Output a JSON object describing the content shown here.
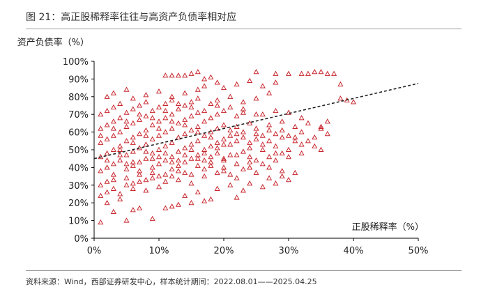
{
  "figure": {
    "title": "图 21：高正股稀释率往往与高资产负债率相对应",
    "source": "资料来源：Wind，西部证券研发中心，样本统计期间：2022.08.01——2025.04.25"
  },
  "chart_data": {
    "type": "scatter",
    "xlabel": "正股稀释率（%）",
    "ylabel": "资产负债率（%）",
    "xlim": [
      0,
      50
    ],
    "ylim": [
      0,
      100
    ],
    "x_ticks": [
      "0%",
      "10%",
      "20%",
      "30%",
      "40%",
      "50%"
    ],
    "y_ticks": [
      "0%",
      "10%",
      "20%",
      "30%",
      "40%",
      "50%",
      "60%",
      "70%",
      "80%",
      "90%",
      "100%"
    ],
    "grid": false,
    "marker": "hollow-triangle",
    "marker_color": "#c8262d",
    "trendline": {
      "style": "dashed",
      "color": "#222222",
      "x": [
        0,
        50
      ],
      "y": [
        45,
        87.5
      ]
    },
    "points": [
      [
        1,
        9
      ],
      [
        5,
        10
      ],
      [
        9,
        11
      ],
      [
        3,
        15
      ],
      [
        6,
        16
      ],
      [
        7,
        17
      ],
      [
        11,
        17
      ],
      [
        12,
        18
      ],
      [
        13,
        19
      ],
      [
        15,
        20
      ],
      [
        17,
        21
      ],
      [
        18,
        22
      ],
      [
        22,
        23
      ],
      [
        1,
        24
      ],
      [
        2,
        26
      ],
      [
        4,
        25
      ],
      [
        8,
        27
      ],
      [
        10,
        29
      ],
      [
        14,
        24
      ],
      [
        16,
        26
      ],
      [
        19,
        28
      ],
      [
        21,
        30
      ],
      [
        23,
        27
      ],
      [
        26,
        29
      ],
      [
        28,
        31
      ],
      [
        30,
        33
      ],
      [
        24,
        31
      ],
      [
        27,
        34
      ],
      [
        29,
        35
      ],
      [
        31,
        37
      ],
      [
        1,
        30
      ],
      [
        2,
        32
      ],
      [
        3,
        33
      ],
      [
        5,
        34
      ],
      [
        6,
        31
      ],
      [
        7,
        36
      ],
      [
        9,
        37
      ],
      [
        11,
        32
      ],
      [
        12,
        35
      ],
      [
        13,
        38
      ],
      [
        15,
        36
      ],
      [
        17,
        39
      ],
      [
        20,
        40
      ],
      [
        22,
        42
      ],
      [
        25,
        44
      ],
      [
        27,
        46
      ],
      [
        29,
        48
      ],
      [
        1,
        38
      ],
      [
        2,
        40
      ],
      [
        3,
        42
      ],
      [
        4,
        44
      ],
      [
        5,
        39
      ],
      [
        6,
        41
      ],
      [
        7,
        43
      ],
      [
        8,
        45
      ],
      [
        9,
        40
      ],
      [
        10,
        42
      ],
      [
        11,
        44
      ],
      [
        12,
        46
      ],
      [
        13,
        41
      ],
      [
        14,
        43
      ],
      [
        15,
        45
      ],
      [
        16,
        47
      ],
      [
        17,
        44
      ],
      [
        18,
        46
      ],
      [
        19,
        48
      ],
      [
        20,
        45
      ],
      [
        21,
        47
      ],
      [
        23,
        49
      ],
      [
        24,
        46
      ],
      [
        26,
        50
      ],
      [
        28,
        52
      ],
      [
        30,
        50
      ],
      [
        32,
        53
      ],
      [
        33,
        55
      ],
      [
        34,
        52
      ],
      [
        35,
        50
      ],
      [
        31,
        57
      ],
      [
        1,
        46
      ],
      [
        2,
        48
      ],
      [
        3,
        50
      ],
      [
        4,
        52
      ],
      [
        5,
        47
      ],
      [
        6,
        49
      ],
      [
        7,
        51
      ],
      [
        8,
        53
      ],
      [
        9,
        48
      ],
      [
        10,
        50
      ],
      [
        11,
        52
      ],
      [
        12,
        54
      ],
      [
        13,
        49
      ],
      [
        14,
        51
      ],
      [
        15,
        53
      ],
      [
        16,
        55
      ],
      [
        17,
        50
      ],
      [
        18,
        52
      ],
      [
        19,
        54
      ],
      [
        20,
        56
      ],
      [
        21,
        53
      ],
      [
        22,
        55
      ],
      [
        23,
        57
      ],
      [
        24,
        54
      ],
      [
        25,
        56
      ],
      [
        26,
        58
      ],
      [
        27,
        55
      ],
      [
        28,
        59
      ],
      [
        29,
        57
      ],
      [
        1,
        54
      ],
      [
        2,
        56
      ],
      [
        3,
        58
      ],
      [
        4,
        60
      ],
      [
        5,
        55
      ],
      [
        6,
        57
      ],
      [
        7,
        59
      ],
      [
        8,
        61
      ],
      [
        9,
        56
      ],
      [
        10,
        58
      ],
      [
        11,
        60
      ],
      [
        12,
        62
      ],
      [
        13,
        57
      ],
      [
        14,
        59
      ],
      [
        15,
        61
      ],
      [
        16,
        63
      ],
      [
        17,
        58
      ],
      [
        18,
        60
      ],
      [
        19,
        62
      ],
      [
        20,
        64
      ],
      [
        21,
        61
      ],
      [
        22,
        63
      ],
      [
        24,
        65
      ],
      [
        25,
        62
      ],
      [
        27,
        64
      ],
      [
        29,
        66
      ],
      [
        31,
        63
      ],
      [
        33,
        65
      ],
      [
        35,
        62
      ],
      [
        36,
        66
      ],
      [
        1,
        62
      ],
      [
        2,
        64
      ],
      [
        3,
        66
      ],
      [
        4,
        68
      ],
      [
        5,
        63
      ],
      [
        6,
        65
      ],
      [
        7,
        67
      ],
      [
        8,
        69
      ],
      [
        9,
        64
      ],
      [
        10,
        66
      ],
      [
        11,
        68
      ],
      [
        12,
        70
      ],
      [
        13,
        65
      ],
      [
        14,
        67
      ],
      [
        15,
        69
      ],
      [
        16,
        71
      ],
      [
        17,
        66
      ],
      [
        18,
        68
      ],
      [
        19,
        70
      ],
      [
        20,
        72
      ],
      [
        22,
        69
      ],
      [
        23,
        71
      ],
      [
        26,
        70
      ],
      [
        28,
        72
      ],
      [
        30,
        71
      ],
      [
        32,
        68
      ],
      [
        1,
        70
      ],
      [
        2,
        72
      ],
      [
        3,
        74
      ],
      [
        4,
        76
      ],
      [
        5,
        71
      ],
      [
        6,
        73
      ],
      [
        7,
        75
      ],
      [
        8,
        77
      ],
      [
        9,
        72
      ],
      [
        10,
        74
      ],
      [
        11,
        76
      ],
      [
        12,
        78
      ],
      [
        13,
        73
      ],
      [
        14,
        75
      ],
      [
        15,
        77
      ],
      [
        16,
        79
      ],
      [
        18,
        76
      ],
      [
        19,
        78
      ],
      [
        21,
        80
      ],
      [
        23,
        77
      ],
      [
        25,
        79
      ],
      [
        27,
        82
      ],
      [
        2,
        80
      ],
      [
        3,
        82
      ],
      [
        5,
        84
      ],
      [
        6,
        79
      ],
      [
        8,
        81
      ],
      [
        10,
        83
      ],
      [
        12,
        80
      ],
      [
        14,
        82
      ],
      [
        16,
        84
      ],
      [
        17,
        86
      ],
      [
        19,
        88
      ],
      [
        20,
        85
      ],
      [
        22,
        87
      ],
      [
        24,
        89
      ],
      [
        26,
        86
      ],
      [
        28,
        88
      ],
      [
        11,
        92
      ],
      [
        12,
        92
      ],
      [
        13,
        92
      ],
      [
        14,
        92
      ],
      [
        15,
        93
      ],
      [
        16,
        94
      ],
      [
        17,
        90
      ],
      [
        18,
        91
      ],
      [
        25,
        94
      ],
      [
        28,
        93
      ],
      [
        30,
        93
      ],
      [
        32,
        93
      ],
      [
        33,
        93
      ],
      [
        34,
        94
      ],
      [
        35,
        94
      ],
      [
        36,
        93
      ],
      [
        37,
        93
      ],
      [
        38,
        87
      ],
      [
        39,
        78
      ],
      [
        40,
        77
      ],
      [
        38,
        79
      ],
      [
        30,
        58
      ],
      [
        31,
        55
      ],
      [
        32,
        60
      ],
      [
        34,
        57
      ],
      [
        35,
        63
      ],
      [
        36,
        59
      ],
      [
        29,
        61
      ],
      [
        2,
        20
      ],
      [
        4,
        22
      ],
      [
        6,
        28
      ],
      [
        8,
        33
      ],
      [
        10,
        35
      ],
      [
        12,
        39
      ],
      [
        14,
        37
      ],
      [
        16,
        41
      ],
      [
        18,
        43
      ],
      [
        20,
        38
      ],
      [
        22,
        34
      ],
      [
        24,
        40
      ],
      [
        26,
        42
      ],
      [
        28,
        44
      ],
      [
        30,
        46
      ],
      [
        32,
        48
      ],
      [
        3,
        36
      ],
      [
        5,
        42
      ],
      [
        7,
        38
      ],
      [
        9,
        45
      ],
      [
        11,
        48
      ],
      [
        13,
        44
      ],
      [
        15,
        50
      ],
      [
        17,
        48
      ],
      [
        19,
        51
      ],
      [
        21,
        58
      ],
      [
        23,
        60
      ],
      [
        25,
        59
      ],
      [
        27,
        61
      ],
      [
        4,
        50
      ],
      [
        6,
        54
      ],
      [
        8,
        58
      ],
      [
        10,
        62
      ],
      [
        12,
        66
      ],
      [
        14,
        64
      ],
      [
        16,
        60
      ],
      [
        18,
        57
      ],
      [
        20,
        53
      ],
      [
        22,
        59
      ],
      [
        24,
        51
      ],
      [
        26,
        53
      ],
      [
        28,
        48
      ],
      [
        1,
        58
      ],
      [
        3,
        62
      ],
      [
        5,
        66
      ],
      [
        7,
        70
      ],
      [
        9,
        68
      ],
      [
        11,
        72
      ],
      [
        13,
        76
      ],
      [
        15,
        74
      ],
      [
        17,
        72
      ],
      [
        19,
        75
      ],
      [
        21,
        74
      ],
      [
        23,
        73
      ],
      [
        25,
        70
      ],
      [
        2,
        44
      ],
      [
        4,
        47
      ],
      [
        6,
        43
      ],
      [
        8,
        49
      ],
      [
        10,
        46
      ],
      [
        12,
        43
      ],
      [
        14,
        47
      ],
      [
        16,
        45
      ],
      [
        18,
        41
      ],
      [
        20,
        44
      ],
      [
        22,
        47
      ],
      [
        24,
        43
      ],
      [
        3,
        28
      ],
      [
        5,
        30
      ],
      [
        7,
        32
      ],
      [
        9,
        34
      ],
      [
        11,
        36
      ],
      [
        13,
        33
      ],
      [
        15,
        31
      ],
      [
        17,
        35
      ],
      [
        19,
        37
      ],
      [
        21,
        36
      ],
      [
        23,
        39
      ],
      [
        25,
        37
      ],
      [
        27,
        40
      ],
      [
        29,
        38
      ]
    ]
  }
}
